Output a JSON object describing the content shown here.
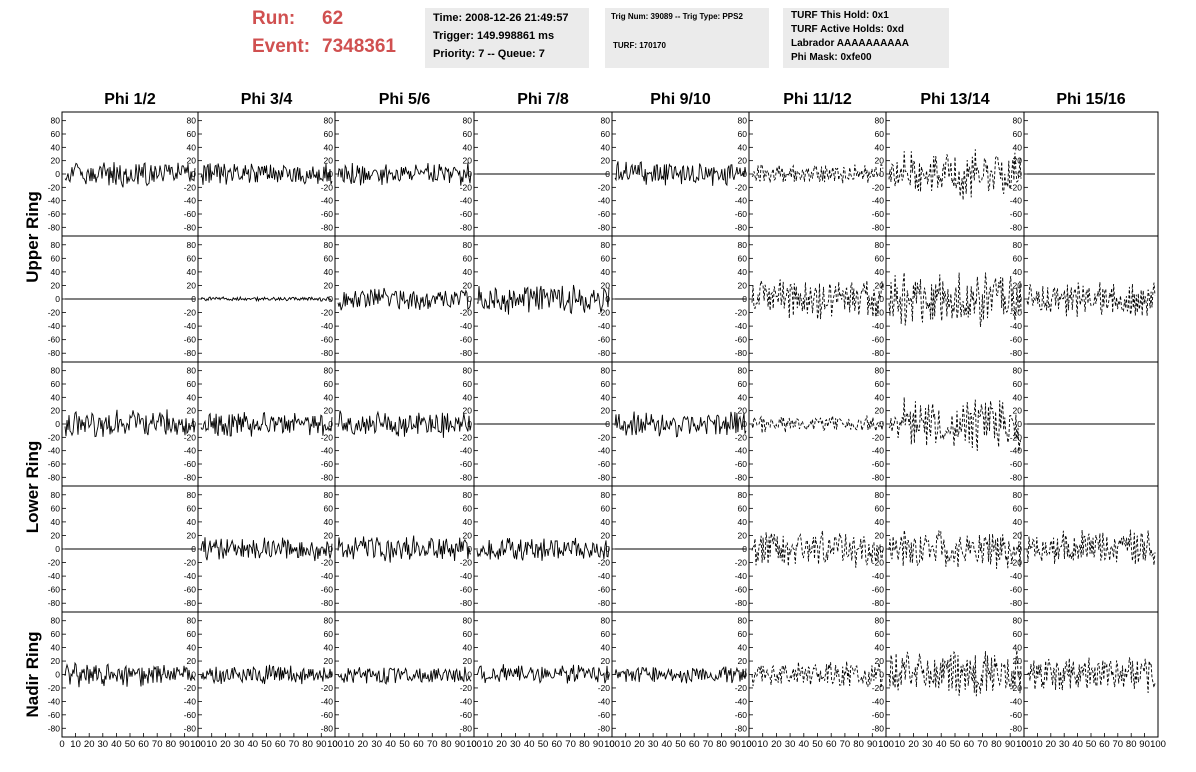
{
  "header": {
    "run_label": "Run:",
    "run_value": "62",
    "event_label": "Event:",
    "event_value": "7348361",
    "time": "Time: 2008-12-26 21:49:57",
    "trigger": "Trigger: 149.998861 ms",
    "priority": "Priority: 7 -- Queue: 7",
    "trig_num": "Trig Num: 39089 -- Trig Type: PPS2",
    "turf": "TURF: 170170",
    "turf_hold": "TURF This Hold: 0x1",
    "turf_active": "TURF Active Holds: 0xd",
    "labrador": "Labrador AAAAAAAAAA",
    "phi_mask": "Phi Mask: 0xfe00"
  },
  "chart_data": {
    "type": "line",
    "columns": [
      "Phi 1/2",
      "Phi 3/4",
      "Phi 5/6",
      "Phi 7/8",
      "Phi 9/10",
      "Phi 11/12",
      "Phi 13/14",
      "Phi 15/16"
    ],
    "rows": [
      "Upper Ring",
      "Lower Ring",
      "Nadir Ring"
    ],
    "ylim": [
      -90,
      90
    ],
    "yticks": [
      -80,
      -60,
      -40,
      -20,
      0,
      20,
      40,
      60,
      80
    ],
    "xlim": [
      0,
      100
    ],
    "xticks": [
      0,
      10,
      20,
      30,
      40,
      50,
      60,
      70,
      80,
      90,
      100
    ],
    "grid": false,
    "line_style_by_column": [
      "solid",
      "solid",
      "solid",
      "solid",
      "solid",
      "dashed",
      "dashed",
      "dashed"
    ],
    "waveform_amplitude": [
      [
        [
          0,
          0,
          0,
          0,
          0,
          0,
          0,
          0
        ],
        [
          18,
          16,
          16,
          0,
          17,
          14,
          34,
          0
        ],
        [
          0,
          3,
          16,
          20,
          0,
          28,
          38,
          24
        ]
      ],
      [
        [
          20,
          18,
          18,
          0,
          17,
          12,
          38,
          0
        ],
        [
          0,
          16,
          18,
          16,
          0,
          24,
          26,
          26
        ]
      ],
      [
        [
          16,
          13,
          14,
          14,
          12,
          18,
          34,
          26
        ]
      ]
    ],
    "panel_amplitude": [
      [
        18,
        16,
        16,
        0,
        17,
        14,
        34,
        0
      ],
      [
        0,
        3,
        16,
        20,
        0,
        28,
        38,
        24
      ],
      [
        20,
        18,
        18,
        0,
        17,
        12,
        38,
        0
      ],
      [
        0,
        16,
        18,
        16,
        0,
        24,
        26,
        26
      ],
      [
        16,
        13,
        14,
        14,
        12,
        18,
        34,
        26
      ]
    ]
  }
}
